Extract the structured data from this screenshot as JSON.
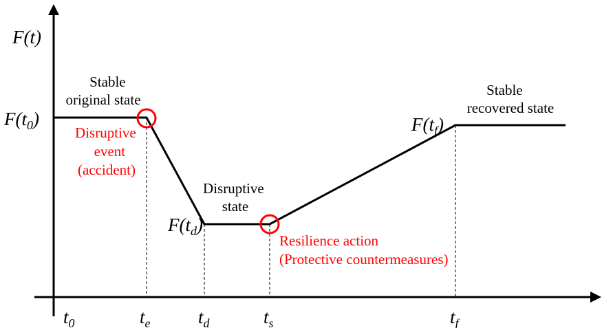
{
  "y_axis_label": {
    "main": "F(t)"
  },
  "x_ticks": {
    "t0": {
      "base": "t",
      "sub": "0"
    },
    "te": {
      "base": "t",
      "sub": "e"
    },
    "td": {
      "base": "t",
      "sub": "d"
    },
    "ts": {
      "base": "t",
      "sub": "s"
    },
    "tf": {
      "base": "t",
      "sub": "f"
    }
  },
  "level_labels": {
    "f_t0": {
      "prefix": "F(",
      "base": "t",
      "sub": "0",
      "suffix": ")"
    },
    "f_td": {
      "prefix": "F(",
      "base": "t",
      "sub": "d",
      "suffix": ")"
    },
    "f_tf": {
      "prefix": "F(",
      "base": "t",
      "sub": "f",
      "suffix": ")"
    }
  },
  "states": {
    "original": [
      "Stable",
      "original state"
    ],
    "disruptive": [
      "Disruptive",
      "state"
    ],
    "recovered": [
      "Stable",
      "recovered state"
    ]
  },
  "annotations": {
    "disruptive_event": [
      "Disruptive",
      "event",
      "(accident)"
    ],
    "resilience_action": [
      "Resilience action",
      "(Protective countermeasures)"
    ]
  },
  "colors": {
    "line": "#000000",
    "highlight": "#ff0000"
  }
}
